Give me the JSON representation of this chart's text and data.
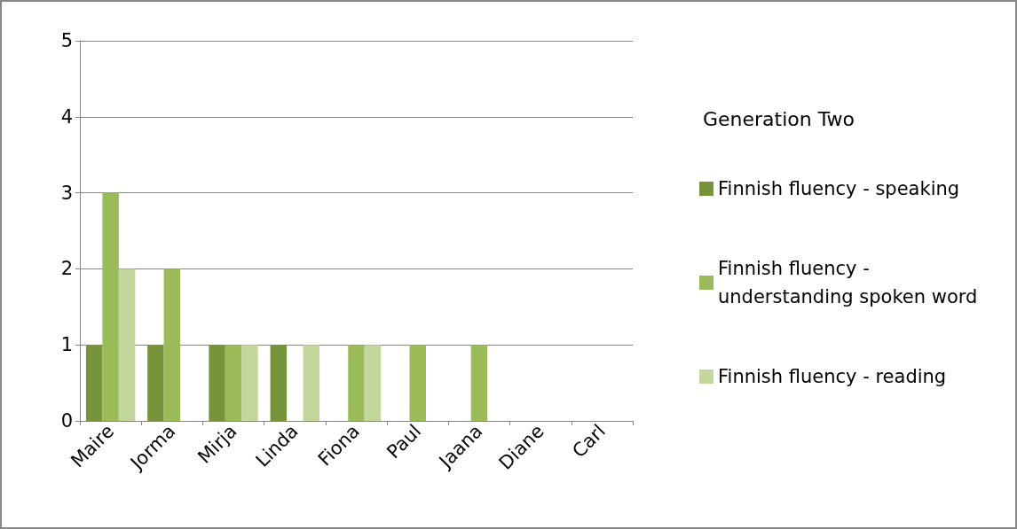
{
  "chart_data": {
    "type": "bar",
    "legend_title": "Generation Two",
    "categories": [
      "Maire",
      "Jorma",
      "Mirja",
      "Linda",
      "Fiona",
      "Paul",
      "Jaana",
      "Diane",
      "Carl"
    ],
    "series": [
      {
        "name": "Finnish fluency - speaking",
        "color": "#77933c",
        "values": [
          1,
          1,
          1,
          1,
          0,
          0,
          0,
          0,
          0
        ]
      },
      {
        "name": "Finnish fluency - understanding spoken word",
        "color": "#9bbb59",
        "values": [
          3,
          2,
          1,
          0,
          1,
          1,
          1,
          0,
          0
        ]
      },
      {
        "name": "Finnish fluency - reading",
        "color": "#c3d69b",
        "values": [
          2,
          0,
          1,
          1,
          1,
          0,
          0,
          0,
          0
        ]
      }
    ],
    "ylim": [
      0,
      5
    ],
    "yticks": [
      0,
      1,
      2,
      3,
      4,
      5
    ],
    "grid": "y",
    "legend": "right"
  }
}
